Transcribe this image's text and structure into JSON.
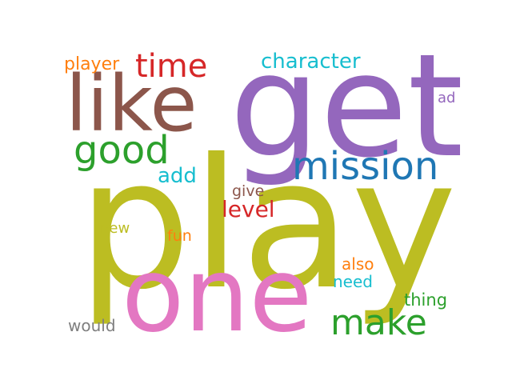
{
  "word_cloud": {
    "words": [
      {
        "id": "play",
        "text": "play",
        "color": "#bcbd22",
        "orientation": "horizontal"
      },
      {
        "id": "get",
        "text": "get",
        "color": "#9467bd",
        "orientation": "horizontal"
      },
      {
        "id": "one",
        "text": "one",
        "color": "#e377c2",
        "orientation": "horizontal"
      },
      {
        "id": "like",
        "text": "like",
        "color": "#8c564b",
        "orientation": "horizontal"
      },
      {
        "id": "mission",
        "text": "mission",
        "color": "#1f77b4",
        "orientation": "horizontal"
      },
      {
        "id": "good",
        "text": "good",
        "color": "#2ca02c",
        "orientation": "horizontal"
      },
      {
        "id": "make",
        "text": "make",
        "color": "#2ca02c",
        "orientation": "horizontal"
      },
      {
        "id": "time",
        "text": "time",
        "color": "#d62728",
        "orientation": "horizontal"
      },
      {
        "id": "character",
        "text": "character",
        "color": "#17becf",
        "orientation": "horizontal"
      },
      {
        "id": "level",
        "text": "level",
        "color": "#d62728",
        "orientation": "horizontal"
      },
      {
        "id": "player",
        "text": "player",
        "color": "#ff7f0e",
        "orientation": "horizontal"
      },
      {
        "id": "add",
        "text": "add",
        "color": "#17becf",
        "orientation": "horizontal"
      },
      {
        "id": "thing",
        "text": "thing",
        "color": "#2ca02c",
        "orientation": "horizontal"
      },
      {
        "id": "would",
        "text": "would",
        "color": "#7f7f7f",
        "orientation": "horizontal"
      },
      {
        "id": "need",
        "text": "need",
        "color": "#17becf",
        "orientation": "horizontal"
      },
      {
        "id": "give",
        "text": "give",
        "color": "#8c564b",
        "orientation": "horizontal"
      },
      {
        "id": "fun",
        "text": "fun",
        "color": "#ff7f0e",
        "orientation": "horizontal"
      },
      {
        "id": "also",
        "text": "also",
        "color": "#ff7f0e",
        "orientation": "horizontal"
      },
      {
        "id": "new",
        "text": "new",
        "color": "#bcbd22",
        "orientation": "horizontal"
      },
      {
        "id": "ad",
        "text": "ad",
        "color": "#9467bd",
        "orientation": "horizontal"
      }
    ]
  }
}
